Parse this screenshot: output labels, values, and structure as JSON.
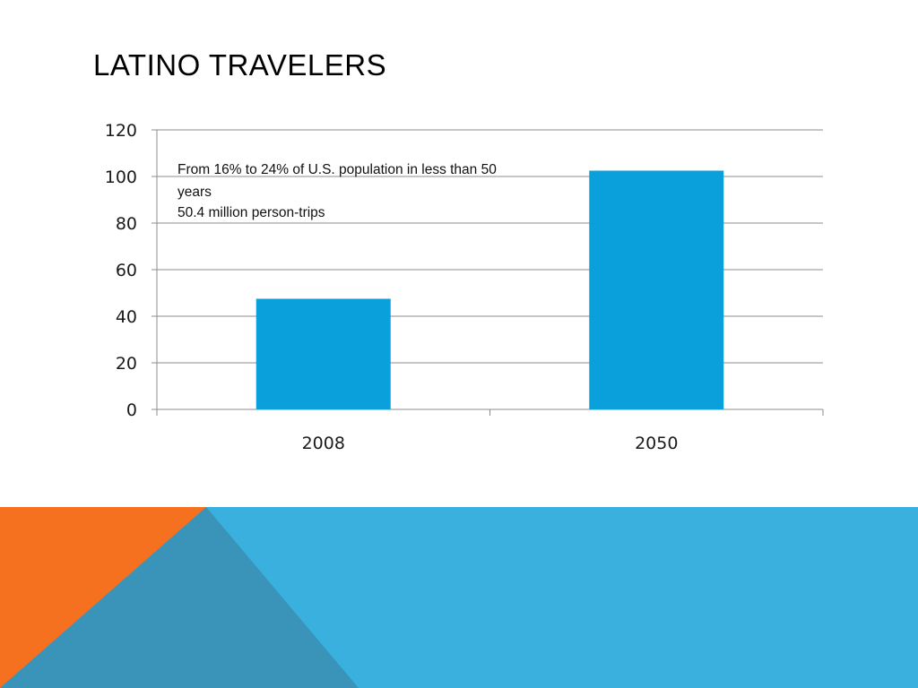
{
  "slide": {
    "title": "LATINO TRAVELERS"
  },
  "colors": {
    "bar": "#0aa0db",
    "grid": "#8c8c8c",
    "axis": "#8c8c8c",
    "footer_blue": "#3ab0de",
    "footer_orange": "#f5701f",
    "footer_dark_blue": "#3a93b8"
  },
  "chart_data": {
    "type": "bar",
    "categories": [
      "2008",
      "2050"
    ],
    "values": [
      47.5,
      102.5
    ],
    "ylim": [
      0,
      120
    ],
    "yticks": [
      0,
      20,
      40,
      60,
      80,
      100,
      120
    ],
    "grid": true,
    "legend": "none",
    "title": "",
    "xlabel": "",
    "ylabel": "",
    "annotation": {
      "lines": [
        "From 16% to 24% of U.S. population in less than 50",
        "years",
        "50.4 million person-trips"
      ]
    }
  }
}
